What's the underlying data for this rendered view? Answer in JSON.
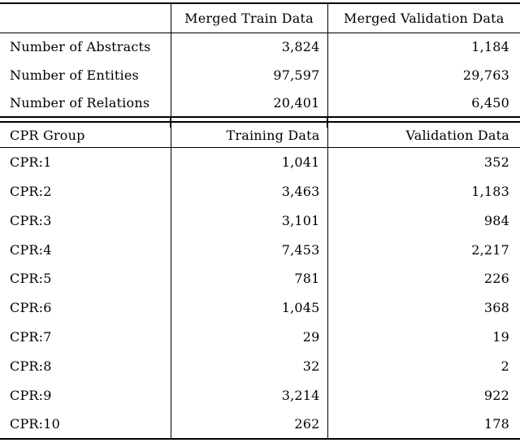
{
  "summary_table": {
    "columns": [
      "",
      "Merged Train Data",
      "Merged Validation Data"
    ],
    "rows": [
      {
        "label": "Number of Abstracts",
        "train": "3,824",
        "validation": "1,184"
      },
      {
        "label": "Number of Entities",
        "train": "97,597",
        "validation": "29,763"
      },
      {
        "label": "Number of Relations",
        "train": "20,401",
        "validation": "6,450"
      }
    ]
  },
  "cpr_table": {
    "columns": [
      "CPR Group",
      "Training Data",
      "Validation Data"
    ],
    "rows": [
      {
        "label": "CPR:1",
        "train": "1,041",
        "validation": "352"
      },
      {
        "label": "CPR:2",
        "train": "3,463",
        "validation": "1,183"
      },
      {
        "label": "CPR:3",
        "train": "3,101",
        "validation": "984"
      },
      {
        "label": "CPR:4",
        "train": "7,453",
        "validation": "2,217"
      },
      {
        "label": "CPR:5",
        "train": "781",
        "validation": "226"
      },
      {
        "label": "CPR:6",
        "train": "1,045",
        "validation": "368"
      },
      {
        "label": "CPR:7",
        "train": "29",
        "validation": "19"
      },
      {
        "label": "CPR:8",
        "train": "32",
        "validation": "2"
      },
      {
        "label": "CPR:9",
        "train": "3,214",
        "validation": "922"
      },
      {
        "label": "CPR:10",
        "train": "262",
        "validation": "178"
      }
    ]
  },
  "colors": {
    "rule": "#000000",
    "text": "#000000",
    "background": "#ffffff"
  }
}
